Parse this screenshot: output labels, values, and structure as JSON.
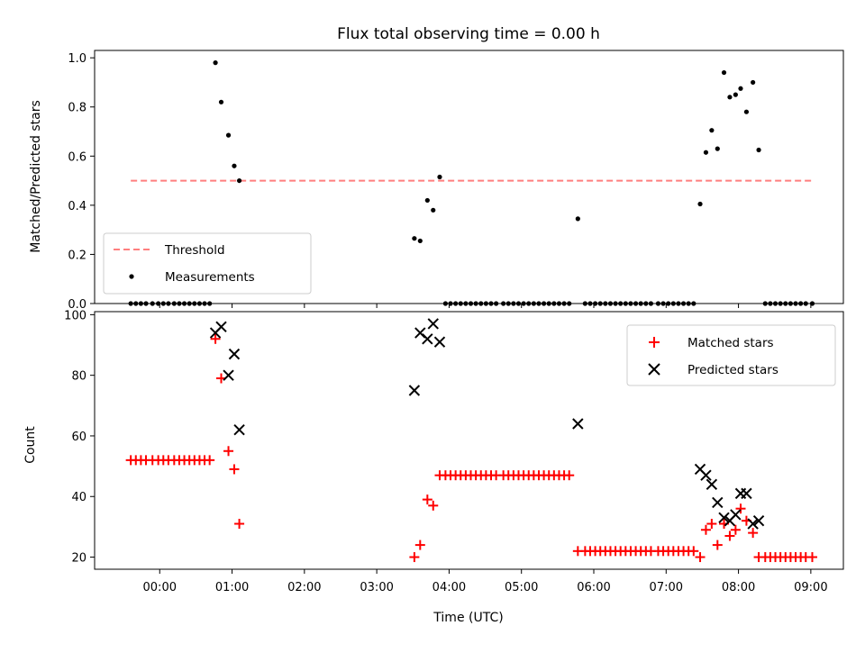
{
  "title": "Flux total observing time = 0.00 h",
  "colors": {
    "threshold": "#ff7f7f",
    "measurements": "#000000",
    "matched": "#ff0000",
    "predicted": "#000000"
  },
  "chart_data": [
    {
      "type": "scatter",
      "panel": "top",
      "title": "Flux total observing time = 0.00 h",
      "xlabel": "",
      "ylabel": "Matched/Predicted stars",
      "ylim": [
        0,
        1.03
      ],
      "xlim": [
        -0.9,
        9.45
      ],
      "yticks": [
        "0.0",
        "0.2",
        "0.4",
        "0.6",
        "0.8",
        "1.0"
      ],
      "legend": "lower-left",
      "threshold": {
        "name": "Threshold",
        "value": 0.5,
        "x_start": -0.4,
        "x_end": 9.05
      },
      "series": [
        {
          "name": "Measurements",
          "points": [
            [
              -0.4,
              0
            ],
            [
              -0.33,
              0
            ],
            [
              -0.26,
              0
            ],
            [
              -0.19,
              0
            ],
            [
              -0.1,
              0
            ],
            [
              -0.02,
              0
            ],
            [
              0.05,
              0
            ],
            [
              0.12,
              0
            ],
            [
              0.2,
              0
            ],
            [
              0.27,
              0
            ],
            [
              0.34,
              0
            ],
            [
              0.41,
              0
            ],
            [
              0.48,
              0
            ],
            [
              0.55,
              0
            ],
            [
              0.62,
              0
            ],
            [
              0.69,
              0
            ],
            [
              0.77,
              0.98
            ],
            [
              0.85,
              0.82
            ],
            [
              0.95,
              0.685
            ],
            [
              1.03,
              0.56
            ],
            [
              1.1,
              0.5
            ],
            [
              3.52,
              0.265
            ],
            [
              3.6,
              0.255
            ],
            [
              3.7,
              0.42
            ],
            [
              3.78,
              0.38
            ],
            [
              3.87,
              0.515
            ],
            [
              3.95,
              0
            ],
            [
              4.02,
              0
            ],
            [
              4.09,
              0
            ],
            [
              4.16,
              0
            ],
            [
              4.23,
              0
            ],
            [
              4.3,
              0
            ],
            [
              4.37,
              0
            ],
            [
              4.44,
              0
            ],
            [
              4.51,
              0
            ],
            [
              4.58,
              0
            ],
            [
              4.65,
              0
            ],
            [
              4.75,
              0
            ],
            [
              4.82,
              0
            ],
            [
              4.89,
              0
            ],
            [
              4.96,
              0
            ],
            [
              5.03,
              0
            ],
            [
              5.1,
              0
            ],
            [
              5.17,
              0
            ],
            [
              5.24,
              0
            ],
            [
              5.31,
              0
            ],
            [
              5.38,
              0
            ],
            [
              5.45,
              0
            ],
            [
              5.52,
              0
            ],
            [
              5.59,
              0
            ],
            [
              5.66,
              0
            ],
            [
              5.78,
              0.345
            ],
            [
              5.88,
              0
            ],
            [
              5.95,
              0
            ],
            [
              6.02,
              0
            ],
            [
              6.09,
              0
            ],
            [
              6.16,
              0
            ],
            [
              6.23,
              0
            ],
            [
              6.3,
              0
            ],
            [
              6.37,
              0
            ],
            [
              6.44,
              0
            ],
            [
              6.51,
              0
            ],
            [
              6.58,
              0
            ],
            [
              6.65,
              0
            ],
            [
              6.72,
              0
            ],
            [
              6.79,
              0
            ],
            [
              6.89,
              0
            ],
            [
              6.96,
              0
            ],
            [
              7.03,
              0
            ],
            [
              7.1,
              0
            ],
            [
              7.17,
              0
            ],
            [
              7.24,
              0
            ],
            [
              7.31,
              0
            ],
            [
              7.38,
              0
            ],
            [
              7.47,
              0.405
            ],
            [
              7.55,
              0.615
            ],
            [
              7.63,
              0.705
            ],
            [
              7.71,
              0.63
            ],
            [
              7.8,
              0.94
            ],
            [
              7.88,
              0.84
            ],
            [
              7.96,
              0.85
            ],
            [
              8.03,
              0.875
            ],
            [
              8.11,
              0.78
            ],
            [
              8.2,
              0.9
            ],
            [
              8.28,
              0.625
            ],
            [
              8.37,
              0
            ],
            [
              8.44,
              0
            ],
            [
              8.51,
              0
            ],
            [
              8.58,
              0
            ],
            [
              8.65,
              0
            ],
            [
              8.72,
              0
            ],
            [
              8.79,
              0
            ],
            [
              8.86,
              0
            ],
            [
              8.93,
              0
            ],
            [
              9.02,
              0
            ]
          ]
        }
      ]
    },
    {
      "type": "scatter",
      "panel": "bottom",
      "xlabel": "Time (UTC)",
      "ylabel": "Count",
      "ylim": [
        16,
        101
      ],
      "xlim": [
        -0.9,
        9.45
      ],
      "xticks": [
        "00:00",
        "01:00",
        "02:00",
        "03:00",
        "04:00",
        "05:00",
        "06:00",
        "07:00",
        "08:00",
        "09:00"
      ],
      "yticks": [
        "20",
        "40",
        "60",
        "80",
        "100"
      ],
      "legend": "top-right",
      "series": [
        {
          "name": "Matched stars",
          "points": [
            [
              -0.4,
              52
            ],
            [
              -0.33,
              52
            ],
            [
              -0.26,
              52
            ],
            [
              -0.19,
              52
            ],
            [
              -0.1,
              52
            ],
            [
              -0.02,
              52
            ],
            [
              0.05,
              52
            ],
            [
              0.12,
              52
            ],
            [
              0.2,
              52
            ],
            [
              0.27,
              52
            ],
            [
              0.34,
              52
            ],
            [
              0.41,
              52
            ],
            [
              0.48,
              52
            ],
            [
              0.55,
              52
            ],
            [
              0.62,
              52
            ],
            [
              0.69,
              52
            ],
            [
              0.77,
              92
            ],
            [
              0.85,
              79
            ],
            [
              0.95,
              55
            ],
            [
              1.03,
              49
            ],
            [
              1.1,
              31
            ],
            [
              3.52,
              20
            ],
            [
              3.6,
              24
            ],
            [
              3.7,
              39
            ],
            [
              3.78,
              37
            ],
            [
              3.87,
              47
            ],
            [
              3.95,
              47
            ],
            [
              4.02,
              47
            ],
            [
              4.09,
              47
            ],
            [
              4.16,
              47
            ],
            [
              4.23,
              47
            ],
            [
              4.3,
              47
            ],
            [
              4.37,
              47
            ],
            [
              4.44,
              47
            ],
            [
              4.51,
              47
            ],
            [
              4.58,
              47
            ],
            [
              4.65,
              47
            ],
            [
              4.75,
              47
            ],
            [
              4.82,
              47
            ],
            [
              4.89,
              47
            ],
            [
              4.96,
              47
            ],
            [
              5.03,
              47
            ],
            [
              5.1,
              47
            ],
            [
              5.17,
              47
            ],
            [
              5.24,
              47
            ],
            [
              5.31,
              47
            ],
            [
              5.38,
              47
            ],
            [
              5.45,
              47
            ],
            [
              5.52,
              47
            ],
            [
              5.59,
              47
            ],
            [
              5.66,
              47
            ],
            [
              5.78,
              22
            ],
            [
              5.88,
              22
            ],
            [
              5.95,
              22
            ],
            [
              6.02,
              22
            ],
            [
              6.09,
              22
            ],
            [
              6.16,
              22
            ],
            [
              6.23,
              22
            ],
            [
              6.3,
              22
            ],
            [
              6.37,
              22
            ],
            [
              6.44,
              22
            ],
            [
              6.51,
              22
            ],
            [
              6.58,
              22
            ],
            [
              6.65,
              22
            ],
            [
              6.72,
              22
            ],
            [
              6.79,
              22
            ],
            [
              6.89,
              22
            ],
            [
              6.96,
              22
            ],
            [
              7.03,
              22
            ],
            [
              7.1,
              22
            ],
            [
              7.17,
              22
            ],
            [
              7.24,
              22
            ],
            [
              7.31,
              22
            ],
            [
              7.38,
              22
            ],
            [
              7.47,
              20
            ],
            [
              7.55,
              29
            ],
            [
              7.63,
              31
            ],
            [
              7.71,
              24
            ],
            [
              7.8,
              31
            ],
            [
              7.88,
              27
            ],
            [
              7.96,
              29
            ],
            [
              8.03,
              36
            ],
            [
              8.11,
              32
            ],
            [
              8.2,
              28
            ],
            [
              8.28,
              20
            ],
            [
              8.37,
              20
            ],
            [
              8.44,
              20
            ],
            [
              8.51,
              20
            ],
            [
              8.58,
              20
            ],
            [
              8.65,
              20
            ],
            [
              8.72,
              20
            ],
            [
              8.79,
              20
            ],
            [
              8.86,
              20
            ],
            [
              8.93,
              20
            ],
            [
              9.02,
              20
            ]
          ]
        },
        {
          "name": "Predicted stars",
          "points": [
            [
              0.77,
              94
            ],
            [
              0.85,
              96
            ],
            [
              0.95,
              80
            ],
            [
              1.03,
              87
            ],
            [
              1.1,
              62
            ],
            [
              3.52,
              75
            ],
            [
              3.6,
              94
            ],
            [
              3.7,
              92
            ],
            [
              3.78,
              97
            ],
            [
              3.87,
              91
            ],
            [
              5.78,
              64
            ],
            [
              7.47,
              49
            ],
            [
              7.55,
              47
            ],
            [
              7.63,
              44
            ],
            [
              7.71,
              38
            ],
            [
              7.8,
              33
            ],
            [
              7.88,
              32
            ],
            [
              7.96,
              34
            ],
            [
              8.03,
              41
            ],
            [
              8.11,
              41
            ],
            [
              8.2,
              31
            ],
            [
              8.28,
              32
            ]
          ]
        }
      ]
    }
  ]
}
